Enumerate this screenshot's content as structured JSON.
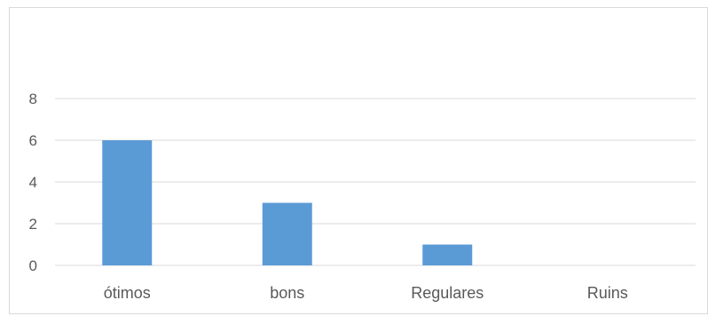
{
  "chart_data": {
    "type": "bar",
    "categories": [
      "ótimos",
      "bons",
      "Regulares",
      "Ruins"
    ],
    "values": [
      6,
      3,
      1,
      0
    ],
    "title": "",
    "xlabel": "",
    "ylabel": "",
    "ylim": [
      0,
      8
    ],
    "yticks": [
      0,
      2,
      4,
      6,
      8
    ],
    "grid": true,
    "bar_color": "#5b9bd5",
    "legend": "none"
  }
}
